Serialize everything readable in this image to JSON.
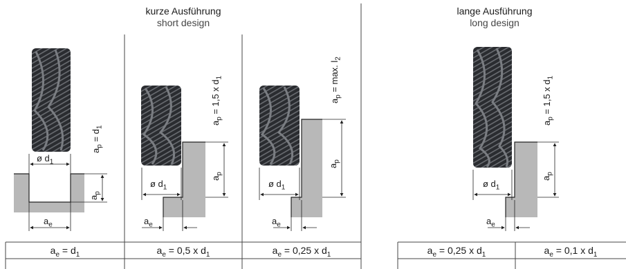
{
  "headers": {
    "short": {
      "title": "kurze Ausführung",
      "subtitle": "short design"
    },
    "long": {
      "title": "lange Ausführung",
      "subtitle": "long design"
    }
  },
  "labels": {
    "ae": "a",
    "ae_sub": "e",
    "ap": "a",
    "ap_sub": "p",
    "d1": "ø d",
    "d1_sub": "1"
  },
  "depth_formulas": [
    {
      "prefix": "a",
      "sub": "p",
      "rest": " = d",
      "sub2": "1"
    },
    {
      "prefix": "a",
      "sub": "p",
      "rest": " = 1,5 x d",
      "sub2": "1"
    },
    {
      "prefix": "a",
      "sub": "p",
      "rest": " = max. l",
      "sub2": "2"
    },
    {
      "prefix": "a",
      "sub": "p",
      "rest": " = 1,5 x d",
      "sub2": "1"
    }
  ],
  "table": [
    {
      "prefix": "a",
      "sub": "e",
      "rest": " = d",
      "sub2": "1"
    },
    {
      "prefix": "a",
      "sub": "e",
      "rest": " = 0,5 x d",
      "sub2": "1"
    },
    {
      "prefix": "a",
      "sub": "e",
      "rest": " = 0,25 x d",
      "sub2": "1"
    },
    {
      "prefix": "a",
      "sub": "e",
      "rest": " = 0,25 x d",
      "sub2": "1"
    },
    {
      "prefix": "a",
      "sub": "e",
      "rest": " = 0,1 x d",
      "sub2": "1"
    }
  ],
  "colors": {
    "cutter": "#2a2c30",
    "cutter_hi": "#6a6d72",
    "workpiece": "#b8b8b8",
    "line": "#222222"
  }
}
